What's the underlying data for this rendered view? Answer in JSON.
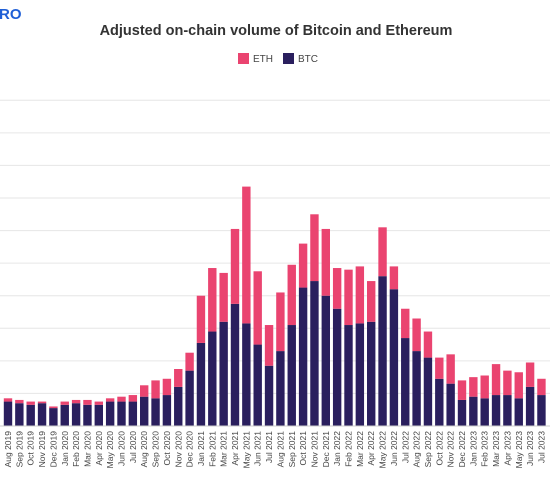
{
  "brand": {
    "text": "RO",
    "color": "#1f5fd6"
  },
  "chart_data": {
    "type": "bar",
    "stacked": true,
    "title": "Adjusted on-chain volume of Bitcoin and Ethereum",
    "legend": {
      "position": "top-center",
      "entries": [
        "ETH",
        "BTC"
      ]
    },
    "grid": true,
    "ylim": [
      0,
      210
    ],
    "categories": [
      "Aug 2019",
      "Sep 2019",
      "Oct 2019",
      "Nov 2019",
      "Dec 2019",
      "Jan 2020",
      "Feb 2020",
      "Mar 2020",
      "Apr 2020",
      "May 2020",
      "Jun 2020",
      "Jul 2020",
      "Aug 2020",
      "Sep 2020",
      "Oct 2020",
      "Nov 2020",
      "Dec 2020",
      "Jan 2021",
      "Feb 2021",
      "Mar 2021",
      "Apr 2021",
      "May 2021",
      "Jun 2021",
      "Jul 2021",
      "Aug 2021",
      "Sep 2021",
      "Oct 2021",
      "Nov 2021",
      "Dec 2021",
      "Jan 2022",
      "Feb 2022",
      "Mar 2022",
      "Apr 2022",
      "May 2022",
      "Jun 2022",
      "Jul 2022",
      "Aug 2022",
      "Sep 2022",
      "Oct 2022",
      "Nov 2022",
      "Dec 2022",
      "Jan 2023",
      "Feb 2023",
      "Mar 2023",
      "Apr 2023",
      "May 2023",
      "Jun 2023",
      "Jul 2023"
    ],
    "series": [
      {
        "name": "BTC",
        "color": "#2a1f5e",
        "values": [
          15,
          14,
          13,
          14,
          11,
          13,
          14,
          13,
          13,
          15,
          15,
          15,
          18,
          17,
          19,
          24,
          34,
          51,
          58,
          64,
          75,
          63,
          50,
          37,
          46,
          62,
          85,
          89,
          80,
          72,
          62,
          63,
          64,
          92,
          84,
          54,
          46,
          42,
          29,
          26,
          16,
          18,
          17,
          19,
          19,
          17,
          24,
          19
        ]
      },
      {
        "name": "ETH",
        "color": "#ea4470",
        "values": [
          2,
          2,
          2,
          1,
          1,
          2,
          2,
          3,
          2,
          2,
          3,
          4,
          7,
          11,
          10,
          11,
          11,
          29,
          39,
          30,
          46,
          84,
          45,
          25,
          36,
          37,
          27,
          41,
          41,
          25,
          34,
          35,
          25,
          30,
          14,
          18,
          20,
          16,
          13,
          18,
          12,
          12,
          14,
          19,
          15,
          16,
          15,
          10
        ]
      }
    ]
  }
}
